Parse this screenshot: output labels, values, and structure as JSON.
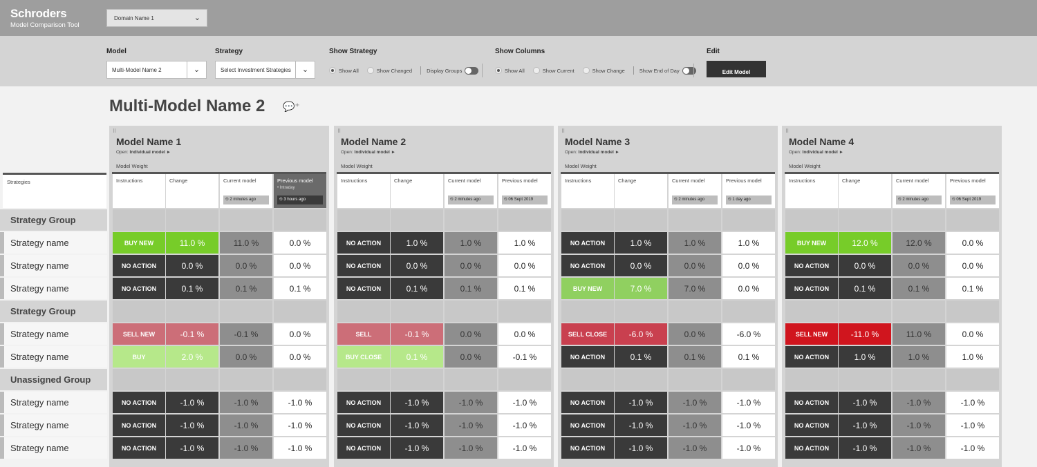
{
  "header": {
    "logo": "Schroders",
    "subtitle": "Model Comparison Tool",
    "domain_select": "Domain Name 1"
  },
  "controls": {
    "model_label": "Model",
    "model_value": "Multi-Model Name 2",
    "strategy_label": "Strategy",
    "strategy_value": "Select Investment Strategies",
    "show_strategy_label": "Show Strategy",
    "show_all": "Show All",
    "show_changed": "Show Changed",
    "display_groups": "Display Groups",
    "show_columns_label": "Show Columns",
    "cols_show_all": "Show All",
    "show_current": "Show Current",
    "show_change": "Show Change",
    "show_end_of_day": "Show End of Day",
    "edit_label": "Edit",
    "edit_button": "Edit Model"
  },
  "page_title": "Multi-Model Name 2",
  "strategies_header": "Strategies",
  "rows": [
    {
      "type": "group",
      "label": "Strategy Group"
    },
    {
      "type": "item",
      "label": "Strategy name"
    },
    {
      "type": "item",
      "label": "Strategy name"
    },
    {
      "type": "item",
      "label": "Strategy name"
    },
    {
      "type": "group",
      "label": "Strategy Group"
    },
    {
      "type": "item",
      "label": "Strategy name"
    },
    {
      "type": "item",
      "label": "Strategy name"
    },
    {
      "type": "group",
      "label": "Unassigned Group"
    },
    {
      "type": "item",
      "label": "Strategy name"
    },
    {
      "type": "item",
      "label": "Strategy name"
    },
    {
      "type": "item",
      "label": "Strategy name"
    }
  ],
  "colors": {
    "buy_new": "#77cc29",
    "buy": "#b6e88a",
    "buy_new_light": "#90d060",
    "no_action": "#3a3a3a",
    "sell_new": "#cc6e78",
    "sell_close": "#c9404f",
    "sell_strong": "#d0151e",
    "current": "#8e8e8e"
  },
  "column_labels": {
    "instructions": "Instructions",
    "change": "Change",
    "current": "Current model",
    "previous": "Previous model",
    "weight": "Model Weight",
    "open_prefix": "Open:",
    "open_link": "Individual model ►"
  },
  "models": [
    {
      "name": "Model Name 1",
      "current_tag": "⏲ 2 minutes ago",
      "previous_tag": "⏲ 3 hours ago",
      "previous_sub": "• Intraday",
      "previous_dark": true,
      "rows": [
        [
          "BUY NEW",
          "11.0 %",
          "11.0 %",
          "0.0 %",
          "buy_new"
        ],
        [
          "NO ACTION",
          "0.0 %",
          "0.0 %",
          "0.0 %",
          "no_action"
        ],
        [
          "NO ACTION",
          "0.1 %",
          "0.1 %",
          "0.1 %",
          "no_action"
        ],
        [
          "SELL NEW",
          "-0.1 %",
          "-0.1 %",
          "0.0 %",
          "sell_new"
        ],
        [
          "BUY",
          "2.0 %",
          "0.0 %",
          "0.0 %",
          "buy"
        ],
        [
          "NO ACTION",
          "-1.0 %",
          "-1.0 %",
          "-1.0 %",
          "no_action"
        ],
        [
          "NO ACTION",
          "-1.0 %",
          "-1.0 %",
          "-1.0 %",
          "no_action"
        ],
        [
          "NO ACTION",
          "-1.0 %",
          "-1.0 %",
          "-1.0 %",
          "no_action"
        ]
      ]
    },
    {
      "name": "Model Name 2",
      "current_tag": "⏲ 2 minutes ago",
      "previous_tag": "⏲ 06 Sept 2019",
      "previous_sub": "",
      "previous_dark": false,
      "rows": [
        [
          "NO ACTION",
          "1.0 %",
          "1.0 %",
          "1.0 %",
          "no_action"
        ],
        [
          "NO ACTION",
          "0.0 %",
          "0.0 %",
          "0.0 %",
          "no_action"
        ],
        [
          "NO ACTION",
          "0.1 %",
          "0.1 %",
          "0.1 %",
          "no_action"
        ],
        [
          "SELL",
          "-0.1 %",
          "0.0 %",
          "0.0 %",
          "sell_new"
        ],
        [
          "BUY CLOSE",
          "0.1 %",
          "0.0 %",
          "-0.1 %",
          "buy"
        ],
        [
          "NO ACTION",
          "-1.0 %",
          "-1.0 %",
          "-1.0 %",
          "no_action"
        ],
        [
          "NO ACTION",
          "-1.0 %",
          "-1.0 %",
          "-1.0 %",
          "no_action"
        ],
        [
          "NO ACTION",
          "-1.0 %",
          "-1.0 %",
          "-1.0 %",
          "no_action"
        ]
      ]
    },
    {
      "name": "Model Name 3",
      "current_tag": "⏲ 2 minutes ago",
      "previous_tag": "⏲ 1 day ago",
      "previous_sub": "",
      "previous_dark": false,
      "rows": [
        [
          "NO ACTION",
          "1.0 %",
          "1.0 %",
          "1.0 %",
          "no_action"
        ],
        [
          "NO ACTION",
          "0.0 %",
          "0.0 %",
          "0.0 %",
          "no_action"
        ],
        [
          "BUY NEW",
          "7.0 %",
          "7.0 %",
          "0.0 %",
          "buy_new_light"
        ],
        [
          "SELL CLOSE",
          "-6.0 %",
          "0.0 %",
          "-6.0 %",
          "sell_close"
        ],
        [
          "NO ACTION",
          "0.1 %",
          "0.1 %",
          "0.1 %",
          "no_action"
        ],
        [
          "NO ACTION",
          "-1.0 %",
          "-1.0 %",
          "-1.0 %",
          "no_action"
        ],
        [
          "NO ACTION",
          "-1.0 %",
          "-1.0 %",
          "-1.0 %",
          "no_action"
        ],
        [
          "NO ACTION",
          "-1.0 %",
          "-1.0 %",
          "-1.0 %",
          "no_action"
        ]
      ]
    },
    {
      "name": "Model Name 4",
      "current_tag": "⏲ 2 minutes ago",
      "previous_tag": "⏲ 06 Sept 2019",
      "previous_sub": "",
      "previous_dark": false,
      "rows": [
        [
          "BUY NEW",
          "12.0 %",
          "12.0 %",
          "0.0 %",
          "buy_new"
        ],
        [
          "NO ACTION",
          "0.0 %",
          "0.0 %",
          "0.0 %",
          "no_action"
        ],
        [
          "NO ACTION",
          "0.1 %",
          "0.1 %",
          "0.1 %",
          "no_action"
        ],
        [
          "SELL NEW",
          "-11.0 %",
          "11.0 %",
          "0.0 %",
          "sell_strong"
        ],
        [
          "NO ACTION",
          "1.0 %",
          "1.0 %",
          "1.0 %",
          "no_action"
        ],
        [
          "NO ACTION",
          "-1.0 %",
          "-1.0 %",
          "-1.0 %",
          "no_action"
        ],
        [
          "NO ACTION",
          "-1.0 %",
          "-1.0 %",
          "-1.0 %",
          "no_action"
        ],
        [
          "NO ACTION",
          "-1.0 %",
          "-1.0 %",
          "-1.0 %",
          "no_action"
        ]
      ]
    }
  ]
}
